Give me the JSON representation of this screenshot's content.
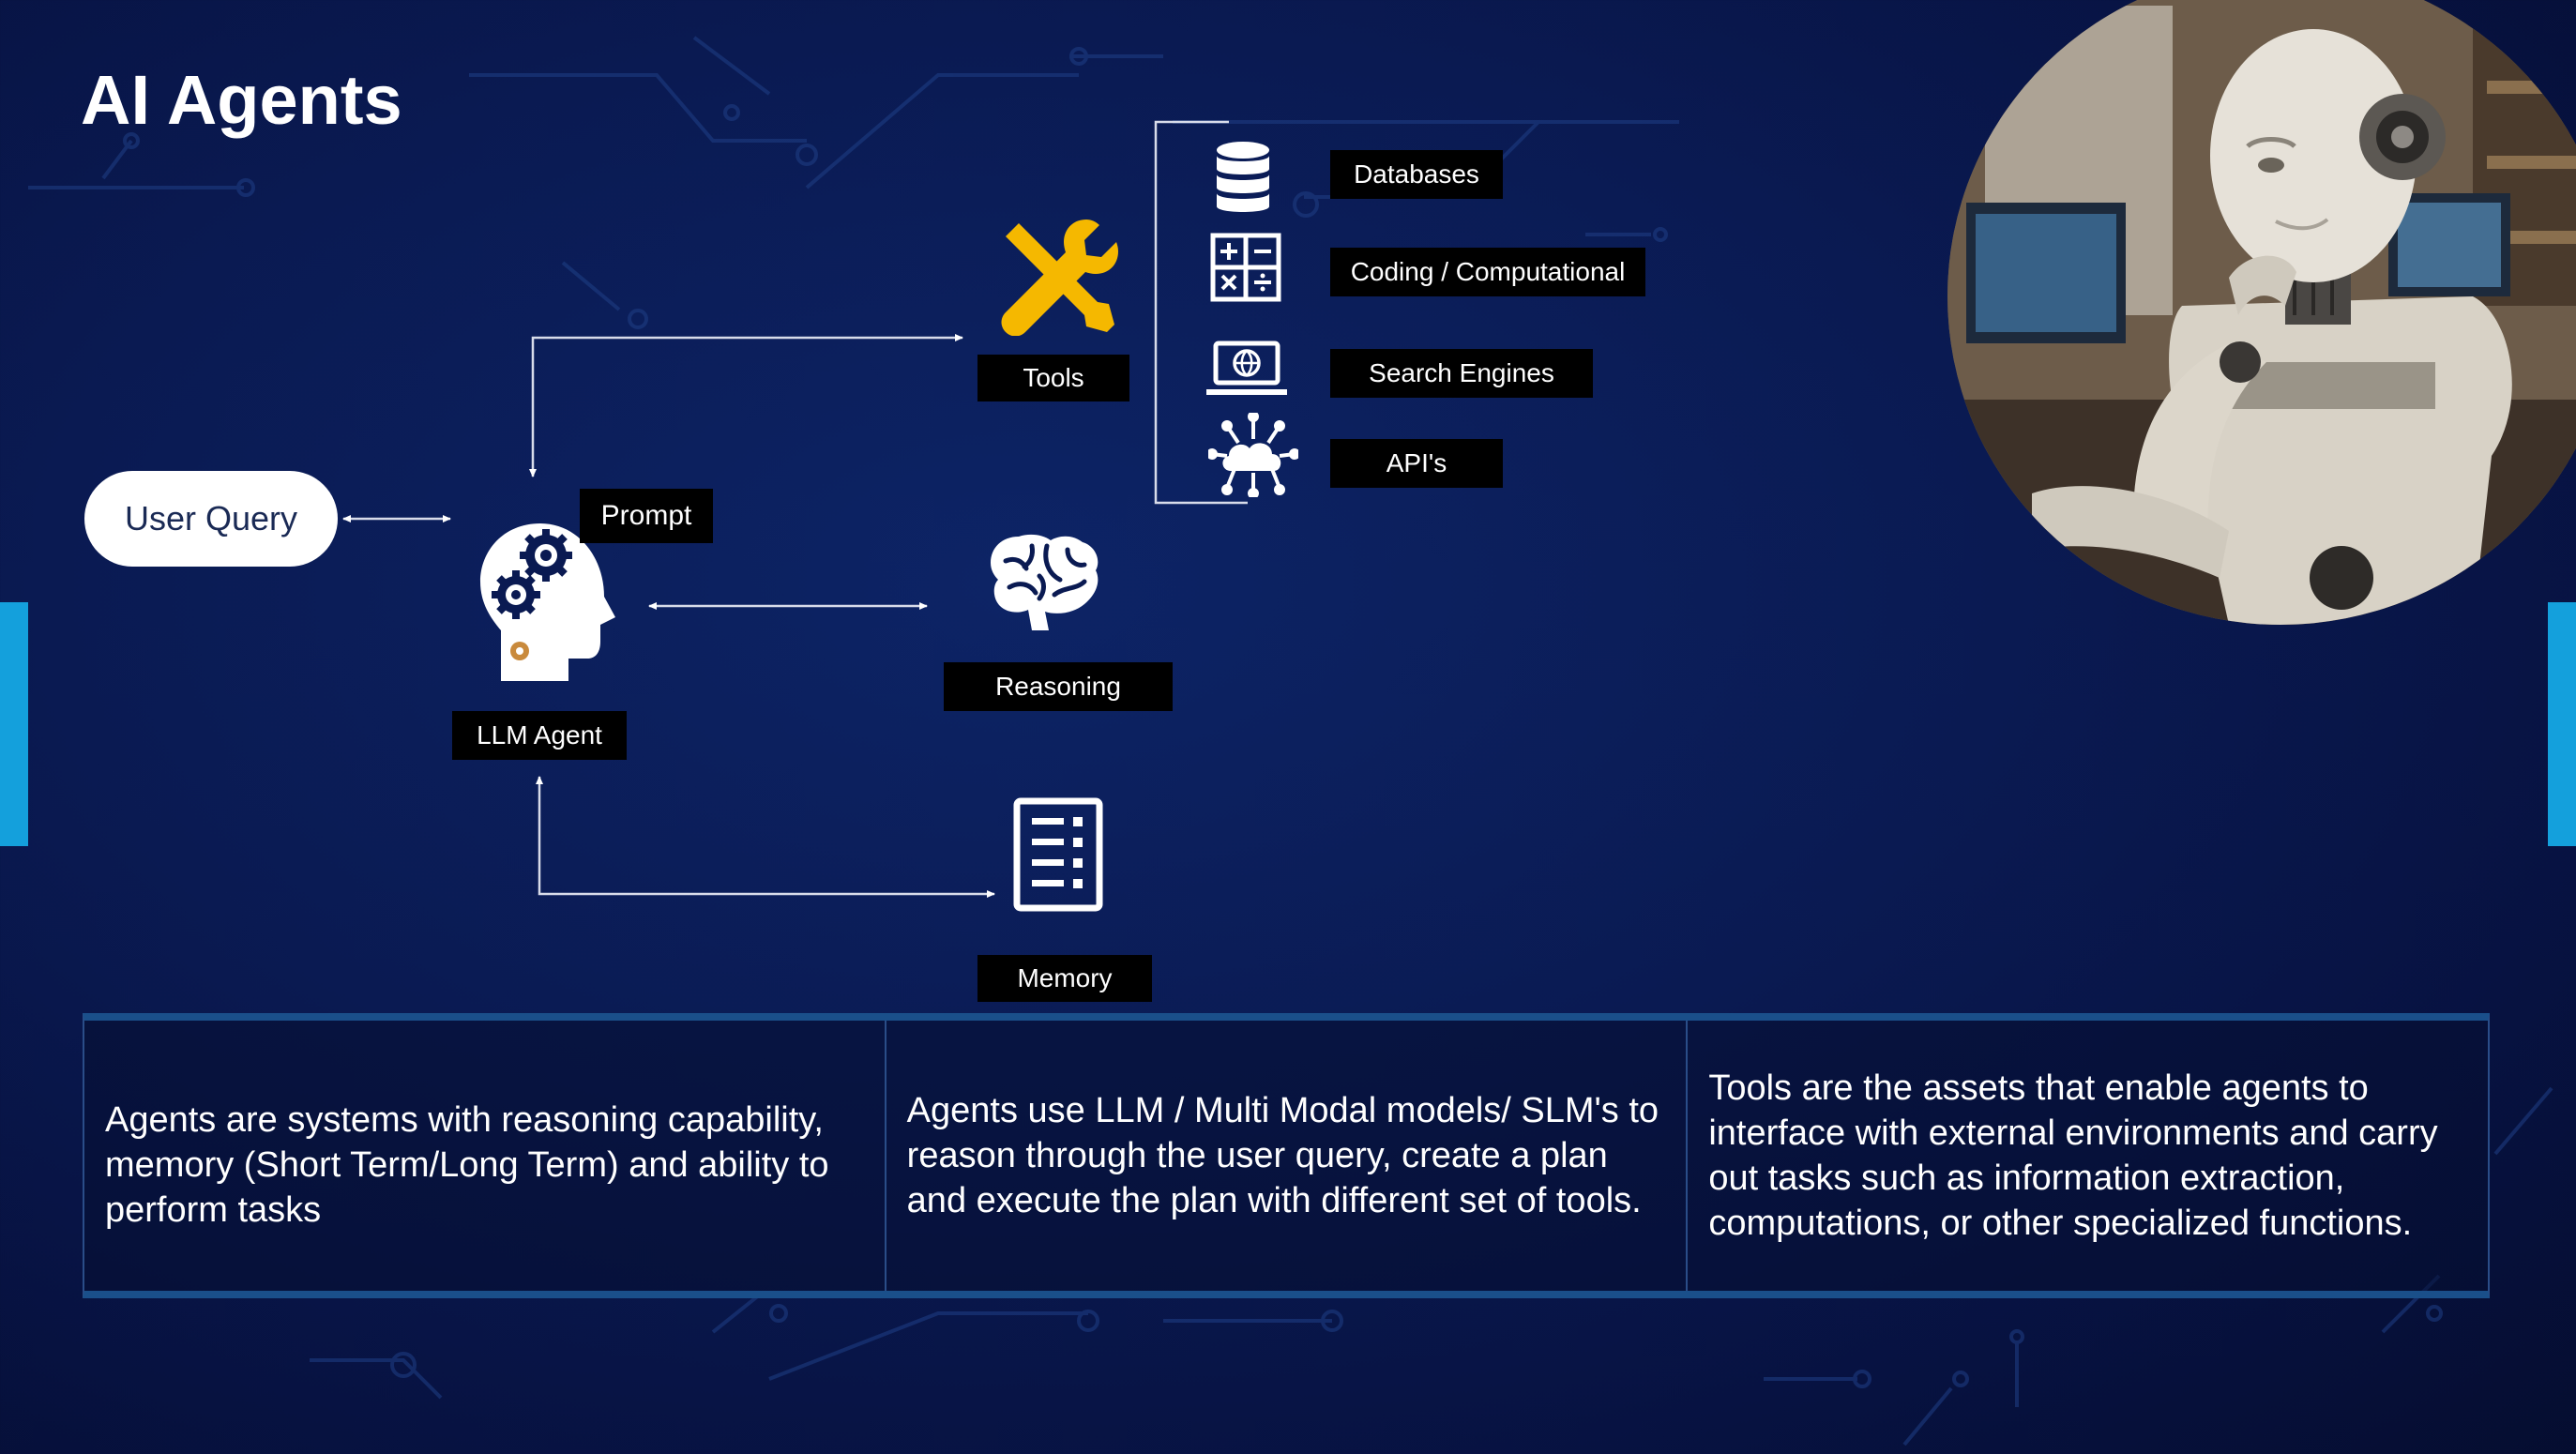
{
  "slide": {
    "title": "AI Agents"
  },
  "diagram": {
    "user_query": "User Query",
    "prompt": "Prompt",
    "llm_agent": "LLM Agent",
    "tools": "Tools",
    "reasoning": "Reasoning",
    "memory": "Memory",
    "tool_items": [
      {
        "label": "Databases",
        "icon": "database-icon"
      },
      {
        "label": "Coding / Computational",
        "icon": "calculator-icon"
      },
      {
        "label": "Search Engines",
        "icon": "laptop-globe-icon"
      },
      {
        "label": "API's",
        "icon": "cloud-network-icon"
      }
    ]
  },
  "panel": {
    "cells": [
      "Agents are systems with reasoning capability, memory (Short Term/Long Term) and ability to perform tasks",
      "Agents use LLM / Multi Modal models/ SLM's to reason through the user query, create a plan and execute the plan with different set of tools.",
      "Tools are the assets that enable agents to interface with external environments and carry out tasks such as information extraction, computations, or other specialized functions."
    ]
  },
  "colors": {
    "background": "#0a1a52",
    "accent_bar": "#14a0dc",
    "tools_icon": "#f5b800",
    "label_bg": "#000000"
  }
}
